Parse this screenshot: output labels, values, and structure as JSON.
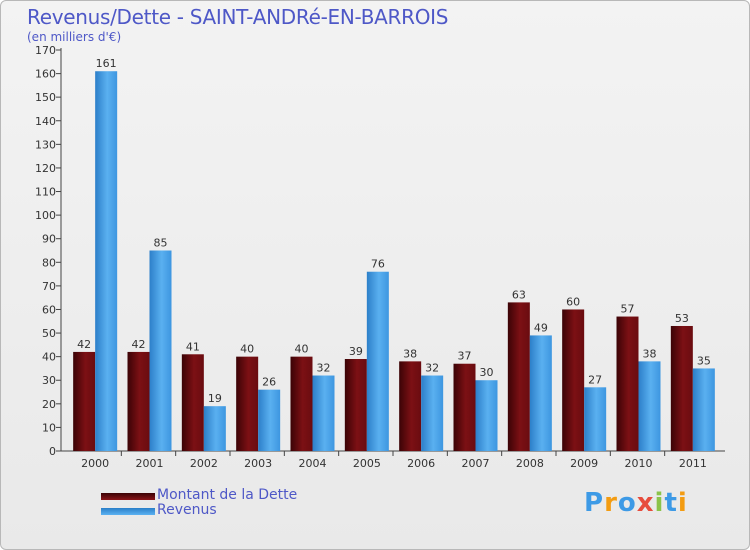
{
  "header": {
    "title": "Revenus/Dette - SAINT-ANDRé-EN-BARROIS",
    "subtitle": "(en milliers d'€)"
  },
  "chart_data": {
    "type": "bar",
    "title": "Revenus/Dette - SAINT-ANDRé-EN-BARROIS",
    "ylabel": "(en milliers d'€)",
    "xlabel": "",
    "ylim": [
      0,
      170
    ],
    "yticks": [
      0,
      10,
      20,
      30,
      40,
      50,
      60,
      70,
      80,
      90,
      100,
      110,
      120,
      130,
      140,
      150,
      160,
      170
    ],
    "grid": false,
    "legend_position": "bottom-left",
    "categories": [
      "2000",
      "2001",
      "2002",
      "2003",
      "2004",
      "2005",
      "2006",
      "2007",
      "2008",
      "2009",
      "2010",
      "2011"
    ],
    "series": [
      {
        "name": "Montant de la Dette",
        "color": "#7a0f12",
        "values": [
          42,
          42,
          41,
          40,
          40,
          39,
          38,
          37,
          63,
          60,
          57,
          53
        ]
      },
      {
        "name": "Revenus",
        "color": "#3d9ae6",
        "values": [
          161,
          85,
          19,
          26,
          32,
          76,
          32,
          30,
          49,
          27,
          38,
          35
        ]
      }
    ]
  },
  "legend": [
    {
      "label": "Montant de la Dette",
      "color": "#7a0f12"
    },
    {
      "label": "Revenus",
      "color": "#3d9ae6"
    }
  ],
  "logo": {
    "letters": [
      "P",
      "r",
      "o",
      "x",
      "i",
      "t",
      "i"
    ],
    "colors": [
      "#3d9ae6",
      "#f39c12",
      "#3d9ae6",
      "#e74c3c",
      "#8bc34a",
      "#3d9ae6",
      "#f39c12"
    ]
  }
}
